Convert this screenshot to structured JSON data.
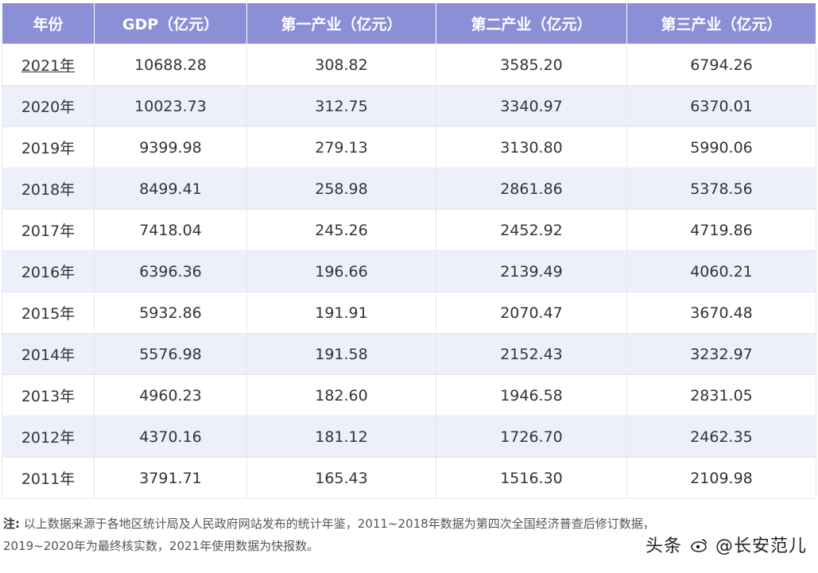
{
  "table": {
    "headers": [
      "年份",
      "GDP（亿元）",
      "第一产业（亿元）",
      "第二产业（亿元）",
      "第三产业（亿元）"
    ],
    "rows": [
      [
        "2021年",
        "10688.28",
        "308.82",
        "3585.20",
        "6794.26"
      ],
      [
        "2020年",
        "10023.73",
        "312.75",
        "3340.97",
        "6370.01"
      ],
      [
        "2019年",
        "9399.98",
        "279.13",
        "3130.80",
        "5990.06"
      ],
      [
        "2018年",
        "8499.41",
        "258.98",
        "2861.86",
        "5378.56"
      ],
      [
        "2017年",
        "7418.04",
        "245.26",
        "2452.92",
        "4719.86"
      ],
      [
        "2016年",
        "6396.36",
        "196.66",
        "2139.49",
        "4060.21"
      ],
      [
        "2015年",
        "5932.86",
        "191.91",
        "2070.47",
        "3670.48"
      ],
      [
        "2014年",
        "5576.98",
        "191.58",
        "2152.43",
        "3232.97"
      ],
      [
        "2013年",
        "4960.23",
        "182.60",
        "1946.58",
        "2831.05"
      ],
      [
        "2012年",
        "4370.16",
        "181.12",
        "1726.70",
        "2462.35"
      ],
      [
        "2011年",
        "3791.71",
        "165.43",
        "1516.30",
        "2109.98"
      ]
    ]
  },
  "note": {
    "label": "注:",
    "line1": "以上数据来源于各地区统计局及人民政府网站发布的统计年鉴，2011~2018年数据为第四次全国经济普查后修订数据，",
    "line2": "2019~2020年为最终核实数，2021年使用数据为快报数。"
  },
  "watermark": {
    "prefix": "头条",
    "handle": "@长安范儿",
    "icon": "weibo-icon"
  },
  "colors": {
    "header_bg": "#8a8fd6",
    "alt_row_bg": "#edf0fa"
  }
}
